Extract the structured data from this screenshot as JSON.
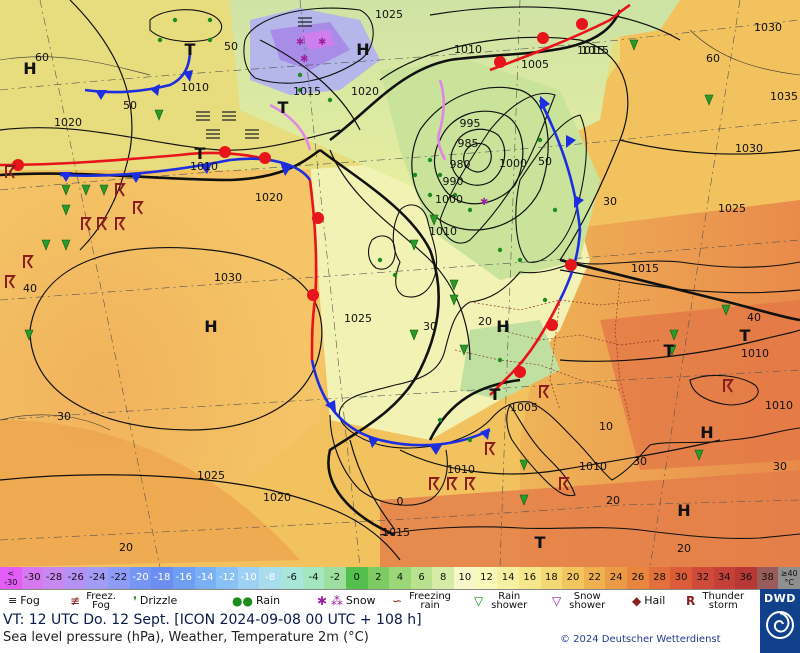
{
  "map": {
    "pressure_centers": [
      {
        "type": "H",
        "label": "H"
      },
      {
        "type": "H",
        "label": "H"
      },
      {
        "type": "H",
        "label": "H"
      },
      {
        "type": "H",
        "label": "H"
      },
      {
        "type": "H",
        "label": "H"
      },
      {
        "type": "H",
        "label": "H"
      },
      {
        "type": "T",
        "label": "T"
      },
      {
        "type": "T",
        "label": "T"
      },
      {
        "type": "T",
        "label": "T"
      },
      {
        "type": "T",
        "label": "T"
      },
      {
        "type": "T",
        "label": "T"
      },
      {
        "type": "T",
        "label": "T"
      },
      {
        "type": "T",
        "label": "T"
      }
    ],
    "isobar_labels": [
      "1025",
      "1010",
      "1015",
      "1005",
      "1015",
      "1030",
      "1010",
      "1015",
      "1020",
      "1020",
      "1010",
      "1035",
      "1030",
      "995",
      "985",
      "980",
      "990",
      "1000",
      "1000",
      "1010",
      "1020",
      "1025",
      "1030",
      "1025",
      "1015",
      "1005",
      "1010",
      "1010",
      "1025",
      "1020",
      "1015",
      "1010",
      "1010"
    ],
    "temperature_labels": [
      "60",
      "50",
      "40",
      "30",
      "20",
      "60",
      "40",
      "50",
      "30",
      "30",
      "20",
      "10",
      "0",
      "20",
      "30",
      "20",
      "30",
      "50"
    ]
  },
  "scale": {
    "values": [
      "< -30",
      "-30",
      "-28",
      "-26",
      "-24",
      "-22",
      "-20",
      "-18",
      "-16",
      "-14",
      "-12",
      "-10",
      "-8",
      "-6",
      "-4",
      "-2",
      "0",
      "2",
      "4",
      "6",
      "8",
      "10",
      "12",
      "14",
      "16",
      "18",
      "20",
      "22",
      "24",
      "26",
      "28",
      "30",
      "32",
      "34",
      "36",
      "38",
      "≥40 °C"
    ],
    "colors": [
      "#e25cf5",
      "#d679f0",
      "#c888f2",
      "#b590f5",
      "#a29cf7",
      "#8e9cf8",
      "#7596f4",
      "#6b8ef0",
      "#6f9ef3",
      "#79aff5",
      "#89c0f6",
      "#9dd0f3",
      "#a9dced",
      "#a8e6d9",
      "#a3e6c0",
      "#9edfa0",
      "#55bf4d",
      "#7ccb63",
      "#9bd777",
      "#b9e28e",
      "#d6eca6",
      "#f7f7c9",
      "#f8f8b8",
      "#f6f1a2",
      "#f6e78b",
      "#f4d874",
      "#f2c55f",
      "#efb14f",
      "#eb9b45",
      "#e8863f",
      "#e3703a",
      "#dc5c3a",
      "#d04a3a",
      "#c44038",
      "#b73835",
      "#9a5b5b",
      "#8f8f8f"
    ]
  },
  "legend": {
    "fog": "Fog",
    "freezing_fog": "Freez. Fog",
    "drizzle": "Drizzle",
    "rain": "Rain",
    "snow": "Snow",
    "freezing_rain": "Freezing rain",
    "rain_shower": "Rain shower",
    "snow_shower": "Snow shower",
    "hail": "Hail",
    "thunderstorm": "Thunder storm"
  },
  "info": {
    "valid_time": "VT: 12 UTC Do.  12 Sept. [ICON 2024-09-08  00 UTC + 108 h]",
    "parameters": "Sea level pressure (hPa), Weather, Temperature 2m (°C)",
    "copyright": "© 2024 Deutscher Wetterdienst",
    "logo": "DWD"
  },
  "colors": {
    "warm_front": "#e8141c",
    "cold_front": "#1c2ee0",
    "occlusion": "#e087e6",
    "logo_bg": "#12418c"
  }
}
